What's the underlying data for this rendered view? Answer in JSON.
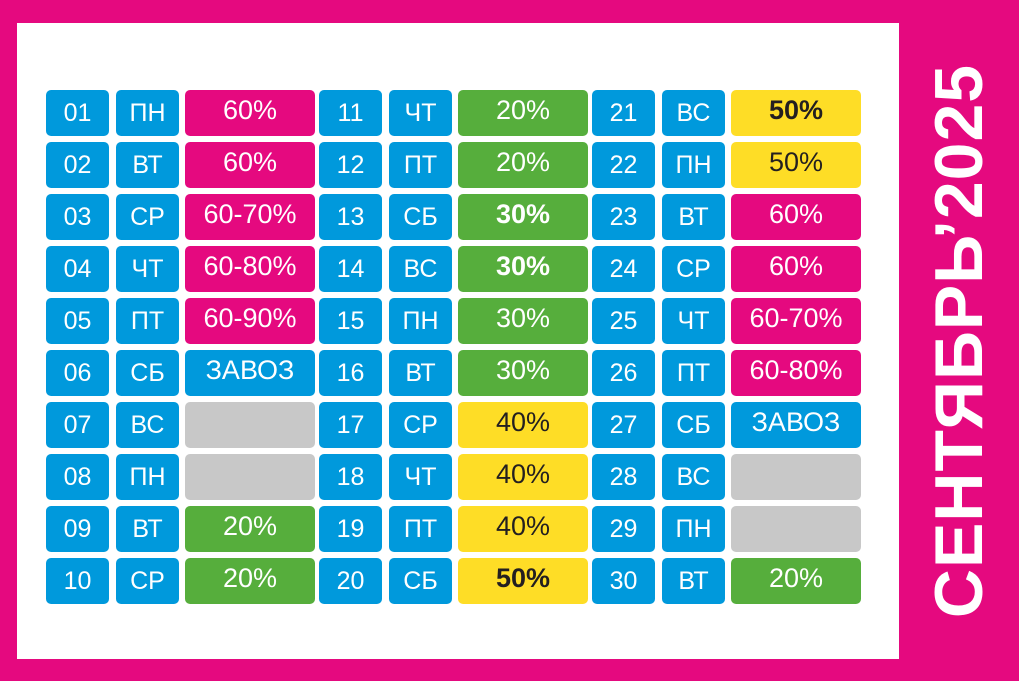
{
  "title": "СЕНТЯБРЬ’2025",
  "colors": {
    "pink": "#e5097f",
    "green": "#56ae3c",
    "yellow": "#fedd26",
    "blue": "#0099dc",
    "gray": "#c8c8c8"
  },
  "columns": [
    [
      {
        "day": "01",
        "weekday": "ПН",
        "value": "60%",
        "color": "pink",
        "bold": false
      },
      {
        "day": "02",
        "weekday": "ВТ",
        "value": "60%",
        "color": "pink",
        "bold": false
      },
      {
        "day": "03",
        "weekday": "СР",
        "value": "60-70%",
        "color": "pink",
        "bold": false
      },
      {
        "day": "04",
        "weekday": "ЧТ",
        "value": "60-80%",
        "color": "pink",
        "bold": false
      },
      {
        "day": "05",
        "weekday": "ПТ",
        "value": "60-90%",
        "color": "pink",
        "bold": false
      },
      {
        "day": "06",
        "weekday": "СБ",
        "value": "ЗАВОЗ",
        "color": "blue",
        "bold": false
      },
      {
        "day": "07",
        "weekday": "ВС",
        "value": "",
        "color": "gray",
        "bold": false
      },
      {
        "day": "08",
        "weekday": "ПН",
        "value": "",
        "color": "gray",
        "bold": false
      },
      {
        "day": "09",
        "weekday": "ВТ",
        "value": "20%",
        "color": "green",
        "bold": false
      },
      {
        "day": "10",
        "weekday": "СР",
        "value": "20%",
        "color": "green",
        "bold": false
      }
    ],
    [
      {
        "day": "11",
        "weekday": "ЧТ",
        "value": "20%",
        "color": "green",
        "bold": false
      },
      {
        "day": "12",
        "weekday": "ПТ",
        "value": "20%",
        "color": "green",
        "bold": false
      },
      {
        "day": "13",
        "weekday": "СБ",
        "value": "30%",
        "color": "green",
        "bold": true
      },
      {
        "day": "14",
        "weekday": "ВС",
        "value": "30%",
        "color": "green",
        "bold": true
      },
      {
        "day": "15",
        "weekday": "ПН",
        "value": "30%",
        "color": "green",
        "bold": false
      },
      {
        "day": "16",
        "weekday": "ВТ",
        "value": "30%",
        "color": "green",
        "bold": false
      },
      {
        "day": "17",
        "weekday": "СР",
        "value": "40%",
        "color": "yellow",
        "bold": false
      },
      {
        "day": "18",
        "weekday": "ЧТ",
        "value": "40%",
        "color": "yellow",
        "bold": false
      },
      {
        "day": "19",
        "weekday": "ПТ",
        "value": "40%",
        "color": "yellow",
        "bold": false
      },
      {
        "day": "20",
        "weekday": "СБ",
        "value": "50%",
        "color": "yellow",
        "bold": true
      }
    ],
    [
      {
        "day": "21",
        "weekday": "ВС",
        "value": "50%",
        "color": "yellow",
        "bold": true
      },
      {
        "day": "22",
        "weekday": "ПН",
        "value": "50%",
        "color": "yellow",
        "bold": false
      },
      {
        "day": "23",
        "weekday": "ВТ",
        "value": "60%",
        "color": "pink",
        "bold": false
      },
      {
        "day": "24",
        "weekday": "СР",
        "value": "60%",
        "color": "pink",
        "bold": false
      },
      {
        "day": "25",
        "weekday": "ЧТ",
        "value": "60-70%",
        "color": "pink",
        "bold": false
      },
      {
        "day": "26",
        "weekday": "ПТ",
        "value": "60-80%",
        "color": "pink",
        "bold": false
      },
      {
        "day": "27",
        "weekday": "СБ",
        "value": "ЗАВОЗ",
        "color": "blue",
        "bold": false
      },
      {
        "day": "28",
        "weekday": "ВС",
        "value": "",
        "color": "gray",
        "bold": false
      },
      {
        "day": "29",
        "weekday": "ПН",
        "value": "",
        "color": "gray",
        "bold": false
      },
      {
        "day": "30",
        "weekday": "ВТ",
        "value": "20%",
        "color": "green",
        "bold": false
      }
    ]
  ]
}
